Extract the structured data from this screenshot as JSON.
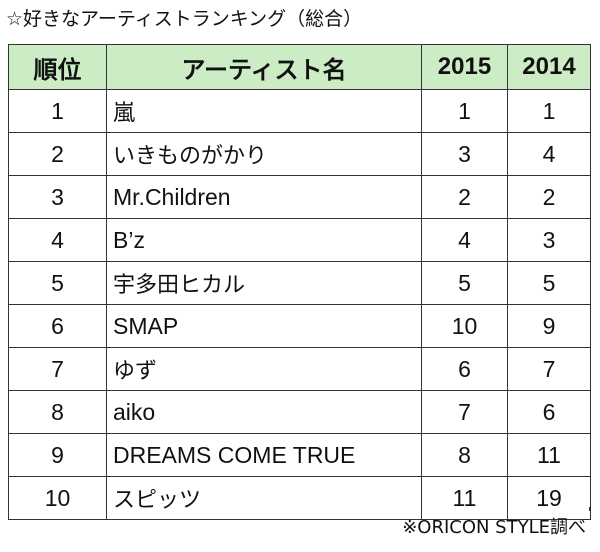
{
  "title": "☆好きなアーティストランキング（総合）",
  "table": {
    "headers": {
      "rank": "順位",
      "artist": "アーティスト名",
      "y2015": "2015",
      "y2014": "2014"
    },
    "rows": [
      {
        "rank": "1",
        "artist": "嵐",
        "y2015": "1",
        "y2014": "1"
      },
      {
        "rank": "2",
        "artist": "いきものがかり",
        "y2015": "3",
        "y2014": "4"
      },
      {
        "rank": "3",
        "artist": "Mr.Children",
        "y2015": "2",
        "y2014": "2"
      },
      {
        "rank": "4",
        "artist": "B’z",
        "y2015": "4",
        "y2014": "3"
      },
      {
        "rank": "5",
        "artist": "宇多田ヒカル",
        "y2015": "5",
        "y2014": "5"
      },
      {
        "rank": "6",
        "artist": "SMAP",
        "y2015": "10",
        "y2014": "9"
      },
      {
        "rank": "7",
        "artist": "ゆず",
        "y2015": "6",
        "y2014": "7"
      },
      {
        "rank": "8",
        "artist": "aiko",
        "y2015": "7",
        "y2014": "6"
      },
      {
        "rank": "9",
        "artist": "DREAMS COME TRUE",
        "y2015": "8",
        "y2014": "11"
      },
      {
        "rank": "10",
        "artist": "スピッツ",
        "y2015": "11",
        "y2014": "19"
      }
    ]
  },
  "source": "※ORICON STYLE調べ",
  "colors": {
    "header_background": "#ccecc6",
    "border": "#333333",
    "text": "#111111"
  }
}
